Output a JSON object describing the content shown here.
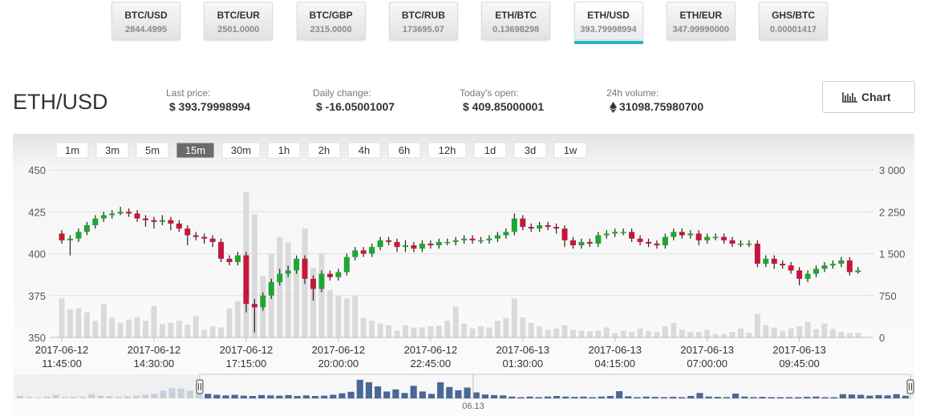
{
  "tabs": [
    {
      "pair": "BTC/USD",
      "price": "2844.4995"
    },
    {
      "pair": "BTC/EUR",
      "price": "2501.0000"
    },
    {
      "pair": "BTC/GBP",
      "price": "2315.0000"
    },
    {
      "pair": "BTC/RUB",
      "price": "173695.07"
    },
    {
      "pair": "ETH/BTC",
      "price": "0.13698298"
    },
    {
      "pair": "ETH/USD",
      "price": "393.79998994",
      "selected": true
    },
    {
      "pair": "ETH/EUR",
      "price": "347.99990000"
    },
    {
      "pair": "GHS/BTC",
      "price": "0.00001417"
    }
  ],
  "header": {
    "title": "ETH/USD",
    "stats": [
      {
        "label": "Last price:",
        "value": "$ 393.79998994"
      },
      {
        "label": "Daily change:",
        "value": "$ -16.05001007"
      },
      {
        "label": "Today's open:",
        "value": "$ 409.85000001"
      },
      {
        "label": "24h volume:",
        "value": "31098.75980700"
      }
    ],
    "button": "Chart"
  },
  "intervals": {
    "items": [
      "1m",
      "3m",
      "5m",
      "15m",
      "30m",
      "1h",
      "2h",
      "4h",
      "6h",
      "12h",
      "1d",
      "3d",
      "1w"
    ],
    "selected": "15m"
  },
  "chart_data": {
    "type": "candlestick",
    "categories": [
      [
        "2017-06-12",
        "11:45:00"
      ],
      null,
      null,
      null,
      null,
      null,
      null,
      null,
      null,
      null,
      null,
      [
        "2017-06-12",
        "14:30:00"
      ],
      null,
      null,
      null,
      null,
      null,
      null,
      null,
      null,
      null,
      null,
      [
        "2017-06-12",
        "17:15:00"
      ],
      null,
      null,
      null,
      null,
      null,
      null,
      null,
      null,
      null,
      null,
      [
        "2017-06-12",
        "20:00:00"
      ],
      null,
      null,
      null,
      null,
      null,
      null,
      null,
      null,
      null,
      null,
      [
        "2017-06-12",
        "22:45:00"
      ],
      null,
      null,
      null,
      null,
      null,
      null,
      null,
      null,
      null,
      null,
      [
        "2017-06-13",
        "01:30:00"
      ],
      null,
      null,
      null,
      null,
      null,
      null,
      null,
      null,
      null,
      null,
      [
        "2017-06-13",
        "04:15:00"
      ],
      null,
      null,
      null,
      null,
      null,
      null,
      null,
      null,
      null,
      null,
      [
        "2017-06-13",
        "07:00:00"
      ],
      null,
      null,
      null,
      null,
      null,
      null,
      null,
      null,
      null,
      null,
      [
        "2017-06-13",
        "09:45:00"
      ],
      null,
      null,
      null,
      null,
      null,
      null,
      null
    ],
    "open": [
      412,
      408,
      409,
      413,
      417,
      421,
      423,
      424,
      425,
      424,
      421,
      420,
      419,
      420,
      418,
      415,
      411,
      410,
      409,
      407,
      397,
      395,
      399,
      370,
      368,
      375,
      383,
      388,
      390,
      397,
      385,
      379,
      388,
      386,
      389,
      398,
      402,
      400,
      404,
      408,
      407,
      404,
      405,
      403,
      406,
      405,
      407,
      407,
      408,
      409,
      408,
      408,
      409,
      411,
      413,
      421,
      416,
      415,
      417,
      416,
      415,
      408,
      405,
      407,
      406,
      411,
      412,
      413,
      413,
      409,
      407,
      406,
      405,
      410,
      413,
      411,
      412,
      408,
      410,
      410,
      408,
      406,
      406,
      406,
      394,
      397,
      394,
      393,
      390,
      385,
      388,
      391,
      393,
      394,
      396,
      389
    ],
    "high": [
      414,
      411,
      415,
      419,
      423,
      425,
      426,
      428,
      427,
      426,
      423,
      422,
      423,
      422,
      420,
      417,
      413,
      412,
      411,
      409,
      399,
      401,
      401,
      373,
      377,
      385,
      391,
      393,
      399,
      399,
      387,
      390,
      390,
      391,
      400,
      404,
      404,
      406,
      410,
      410,
      409,
      408,
      407,
      408,
      408,
      409,
      409,
      410,
      411,
      411,
      410,
      411,
      413,
      415,
      424,
      423,
      418,
      419,
      419,
      418,
      417,
      410,
      409,
      409,
      413,
      414,
      415,
      415,
      415,
      411,
      409,
      408,
      412,
      415,
      415,
      414,
      414,
      412,
      412,
      412,
      410,
      408,
      408,
      408,
      399,
      399,
      396,
      395,
      392,
      390,
      393,
      395,
      396,
      398,
      398,
      392
    ],
    "low": [
      406,
      399,
      407,
      411,
      415,
      419,
      421,
      423,
      422,
      419,
      416,
      415,
      417,
      414,
      413,
      405,
      408,
      406,
      404,
      395,
      393,
      393,
      365,
      353,
      366,
      373,
      381,
      386,
      388,
      382,
      372,
      377,
      384,
      384,
      387,
      396,
      398,
      398,
      402,
      405,
      401,
      401,
      401,
      401,
      403,
      403,
      405,
      405,
      406,
      406,
      406,
      406,
      407,
      409,
      411,
      414,
      413,
      413,
      414,
      412,
      404,
      403,
      403,
      404,
      404,
      409,
      410,
      411,
      407,
      405,
      404,
      403,
      403,
      408,
      409,
      409,
      405,
      406,
      408,
      406,
      404,
      404,
      404,
      392,
      392,
      391,
      391,
      388,
      381,
      383,
      386,
      389,
      391,
      392,
      387,
      388
    ],
    "close": [
      408,
      409,
      413,
      417,
      421,
      423,
      424,
      425,
      424,
      421,
      420,
      419,
      420,
      418,
      415,
      411,
      410,
      409,
      407,
      397,
      395,
      399,
      370,
      368,
      375,
      383,
      388,
      390,
      397,
      385,
      379,
      388,
      386,
      389,
      398,
      402,
      400,
      404,
      408,
      407,
      404,
      405,
      403,
      406,
      405,
      407,
      407,
      408,
      409,
      408,
      408,
      409,
      411,
      413,
      421,
      416,
      415,
      417,
      416,
      415,
      408,
      405,
      407,
      406,
      411,
      412,
      413,
      413,
      409,
      407,
      406,
      405,
      410,
      413,
      411,
      412,
      408,
      410,
      410,
      408,
      406,
      406,
      406,
      394,
      397,
      394,
      393,
      390,
      385,
      388,
      391,
      393,
      394,
      396,
      389,
      390
    ],
    "volume": [
      700,
      500,
      520,
      450,
      300,
      600,
      350,
      260,
      320,
      360,
      300,
      560,
      240,
      260,
      300,
      230,
      380,
      140,
      200,
      180,
      520,
      650,
      2600,
      2200,
      1100,
      1500,
      1800,
      1700,
      1400,
      1950,
      1250,
      1500,
      850,
      750,
      700,
      750,
      350,
      300,
      250,
      220,
      120,
      220,
      180,
      180,
      200,
      210,
      300,
      550,
      250,
      160,
      200,
      180,
      300,
      350,
      700,
      360,
      260,
      200,
      140,
      160,
      220,
      140,
      120,
      110,
      120,
      180,
      80,
      120,
      100,
      160,
      120,
      100,
      200,
      260,
      140,
      100,
      100,
      140,
      60,
      60,
      100,
      160,
      80,
      420,
      220,
      180,
      120,
      160,
      200,
      280,
      150,
      250,
      150,
      100,
      80,
      80
    ],
    "up_color": "#1fa632",
    "down_color": "#c5173b",
    "volume_color": "#dadada",
    "ylim": [
      350,
      450
    ],
    "yticks": [
      450,
      425,
      400,
      375,
      350
    ],
    "y2lim": [
      0,
      3000
    ],
    "y2ticks": [
      {
        "value": 3000,
        "label": "3 000"
      },
      {
        "value": 2250,
        "label": "2 250"
      },
      {
        "value": 1500,
        "label": "1 500"
      },
      750,
      0
    ],
    "grid": true
  },
  "navigator": {
    "label": "06.13",
    "ylim": [
      0,
      750
    ],
    "values": [
      80,
      40,
      30,
      60,
      120,
      40,
      50,
      60,
      140,
      90,
      80,
      60,
      70,
      90,
      120,
      150,
      260,
      340,
      330,
      260,
      200,
      150,
      120,
      100,
      120,
      90,
      80,
      110,
      100,
      90,
      110,
      80,
      100,
      80,
      90,
      120,
      170,
      220,
      620,
      540,
      400,
      230,
      300,
      180,
      420,
      230,
      150,
      540,
      380,
      270,
      360,
      200,
      130,
      110,
      100,
      60,
      40,
      60,
      40,
      60,
      80,
      60,
      50,
      60,
      40,
      60,
      80,
      240,
      70,
      40,
      60,
      50,
      40,
      50,
      40,
      80,
      180,
      60,
      50,
      40,
      160,
      60,
      40,
      50,
      40,
      40,
      40,
      40,
      50,
      60,
      40,
      40,
      140,
      130,
      120,
      90,
      110,
      100,
      140,
      90
    ]
  }
}
